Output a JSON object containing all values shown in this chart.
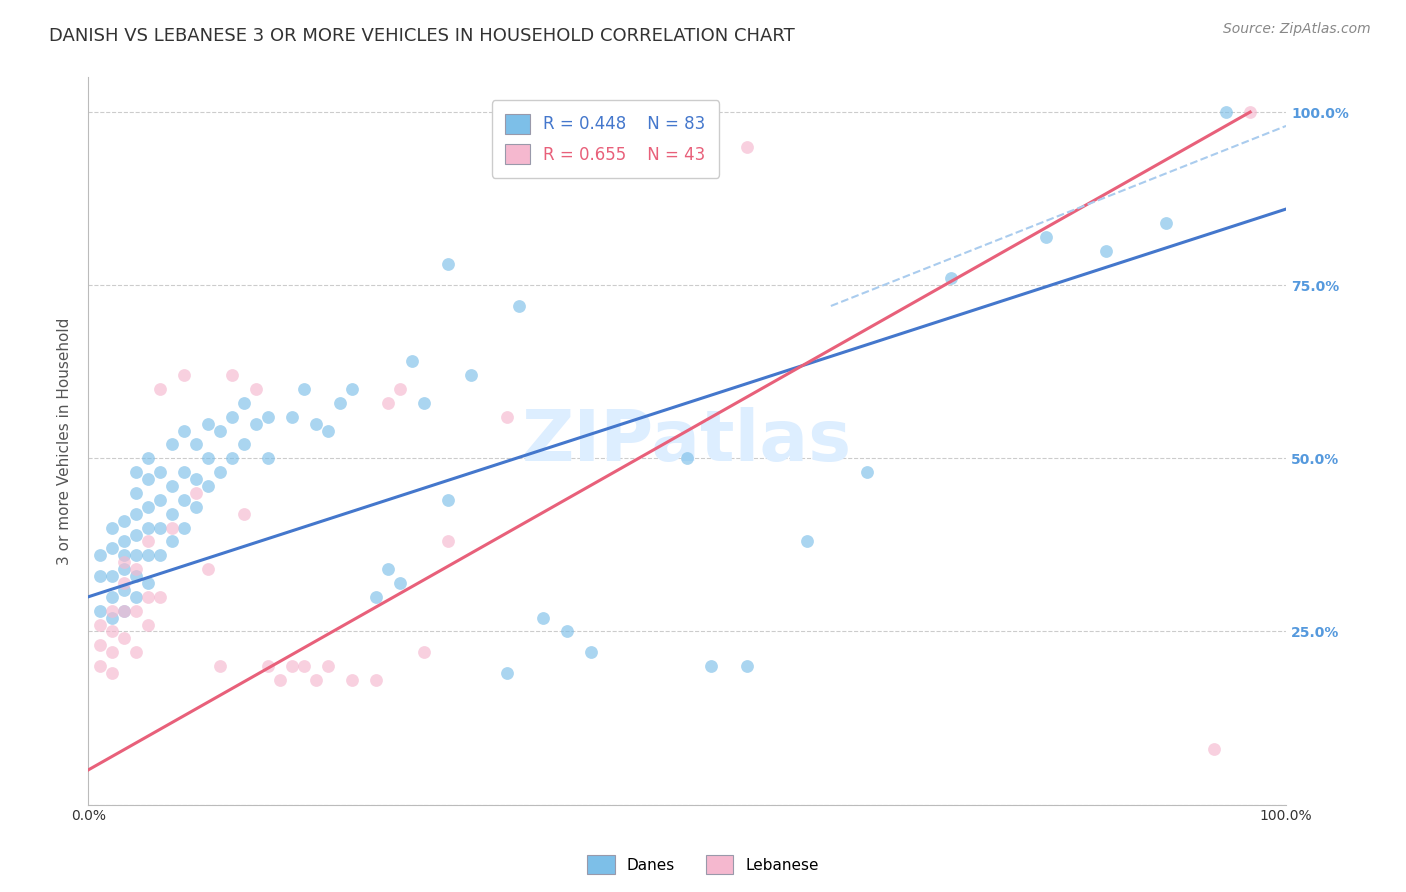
{
  "title": "DANISH VS LEBANESE 3 OR MORE VEHICLES IN HOUSEHOLD CORRELATION CHART",
  "source": "Source: ZipAtlas.com",
  "ylabel": "3 or more Vehicles in Household",
  "xlim": [
    0.0,
    1.0
  ],
  "ylim": [
    0.0,
    1.05
  ],
  "yticks": [
    0.0,
    0.25,
    0.5,
    0.75,
    1.0
  ],
  "ytick_labels": [
    "",
    "25.0%",
    "50.0%",
    "75.0%",
    "100.0%"
  ],
  "danes_color": "#7dbfe8",
  "lebanese_color": "#f5b8cf",
  "danes_line_color": "#4477cc",
  "lebanese_line_color": "#e8607a",
  "dashed_line_color": "#aaccee",
  "legend_danes_r": "R = 0.448",
  "legend_danes_n": "N = 83",
  "legend_lebanese_r": "R = 0.655",
  "legend_lebanese_n": "N = 43",
  "watermark": "ZIPatlas",
  "danes_scatter_x": [
    0.01,
    0.01,
    0.01,
    0.02,
    0.02,
    0.02,
    0.02,
    0.02,
    0.03,
    0.03,
    0.03,
    0.03,
    0.03,
    0.03,
    0.04,
    0.04,
    0.04,
    0.04,
    0.04,
    0.04,
    0.04,
    0.05,
    0.05,
    0.05,
    0.05,
    0.05,
    0.05,
    0.06,
    0.06,
    0.06,
    0.06,
    0.07,
    0.07,
    0.07,
    0.07,
    0.08,
    0.08,
    0.08,
    0.08,
    0.09,
    0.09,
    0.09,
    0.1,
    0.1,
    0.1,
    0.11,
    0.11,
    0.12,
    0.12,
    0.13,
    0.13,
    0.14,
    0.15,
    0.15,
    0.17,
    0.18,
    0.19,
    0.2,
    0.21,
    0.22,
    0.24,
    0.25,
    0.26,
    0.27,
    0.28,
    0.3,
    0.32,
    0.35,
    0.38,
    0.4,
    0.42,
    0.5,
    0.52,
    0.55,
    0.6,
    0.65,
    0.72,
    0.8,
    0.85,
    0.9,
    0.3,
    0.36,
    0.95
  ],
  "danes_scatter_y": [
    0.28,
    0.33,
    0.36,
    0.27,
    0.3,
    0.33,
    0.37,
    0.4,
    0.28,
    0.31,
    0.34,
    0.36,
    0.38,
    0.41,
    0.3,
    0.33,
    0.36,
    0.39,
    0.42,
    0.45,
    0.48,
    0.32,
    0.36,
    0.4,
    0.43,
    0.47,
    0.5,
    0.36,
    0.4,
    0.44,
    0.48,
    0.38,
    0.42,
    0.46,
    0.52,
    0.4,
    0.44,
    0.48,
    0.54,
    0.43,
    0.47,
    0.52,
    0.46,
    0.5,
    0.55,
    0.48,
    0.54,
    0.5,
    0.56,
    0.52,
    0.58,
    0.55,
    0.5,
    0.56,
    0.56,
    0.6,
    0.55,
    0.54,
    0.58,
    0.6,
    0.3,
    0.34,
    0.32,
    0.64,
    0.58,
    0.44,
    0.62,
    0.19,
    0.27,
    0.25,
    0.22,
    0.5,
    0.2,
    0.2,
    0.38,
    0.48,
    0.76,
    0.82,
    0.8,
    0.84,
    0.78,
    0.72,
    1.0
  ],
  "lebanese_scatter_x": [
    0.01,
    0.01,
    0.01,
    0.02,
    0.02,
    0.02,
    0.02,
    0.03,
    0.03,
    0.03,
    0.03,
    0.04,
    0.04,
    0.04,
    0.05,
    0.05,
    0.05,
    0.06,
    0.06,
    0.07,
    0.08,
    0.09,
    0.1,
    0.11,
    0.12,
    0.13,
    0.14,
    0.15,
    0.16,
    0.17,
    0.18,
    0.19,
    0.2,
    0.22,
    0.24,
    0.25,
    0.26,
    0.28,
    0.3,
    0.35,
    0.55,
    0.94,
    0.97
  ],
  "lebanese_scatter_y": [
    0.2,
    0.23,
    0.26,
    0.19,
    0.22,
    0.25,
    0.28,
    0.24,
    0.28,
    0.32,
    0.35,
    0.22,
    0.28,
    0.34,
    0.26,
    0.3,
    0.38,
    0.3,
    0.6,
    0.4,
    0.62,
    0.45,
    0.34,
    0.2,
    0.62,
    0.42,
    0.6,
    0.2,
    0.18,
    0.2,
    0.2,
    0.18,
    0.2,
    0.18,
    0.18,
    0.58,
    0.6,
    0.22,
    0.38,
    0.56,
    0.95,
    0.08,
    1.0
  ],
  "danes_line_x0": 0.0,
  "danes_line_x1": 1.0,
  "danes_line_y0": 0.3,
  "danes_line_y1": 0.86,
  "lebanese_line_x0": 0.0,
  "lebanese_line_x1": 0.97,
  "lebanese_line_y0": 0.05,
  "lebanese_line_y1": 1.0,
  "dashed_line_x0": 0.62,
  "dashed_line_x1": 1.0,
  "dashed_line_y0": 0.72,
  "dashed_line_y1": 0.98,
  "background_color": "#ffffff",
  "grid_color": "#cccccc",
  "title_color": "#333333",
  "right_tick_color": "#5599dd",
  "watermark_color": "#ddeeff",
  "title_fontsize": 13,
  "source_fontsize": 10,
  "ylabel_fontsize": 11,
  "tick_fontsize": 10,
  "legend_fontsize": 12,
  "watermark_fontsize": 52
}
